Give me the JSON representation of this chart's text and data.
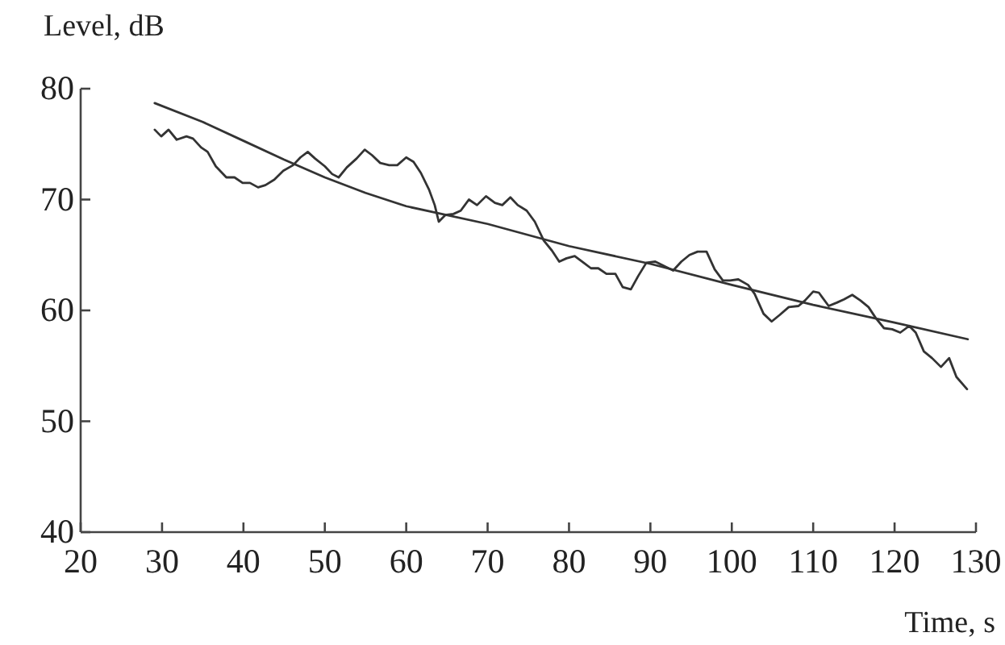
{
  "chart_data": {
    "type": "line",
    "xlabel": "Time, s",
    "ylabel": "Level, dB",
    "xlim": [
      20,
      130
    ],
    "xticks": [
      20,
      30,
      40,
      50,
      60,
      70,
      80,
      90,
      100,
      110,
      120,
      130
    ],
    "ylim": [
      40,
      80
    ],
    "yticks": [
      40,
      50,
      60,
      70,
      80
    ],
    "grid": false,
    "marker": "none",
    "line_style": "solid",
    "series": [
      {
        "color": "#333333",
        "x": [
          29.1,
          29.9,
          30.8,
          31.8,
          33.0,
          33.8,
          34.8,
          35.6,
          36.6,
          37.9,
          38.9,
          39.9,
          40.8,
          41.8,
          42.7,
          43.8,
          44.9,
          46.1,
          47.0,
          47.9,
          48.8,
          50.0,
          50.9,
          51.7,
          52.7,
          53.9,
          54.9,
          55.8,
          56.8,
          57.9,
          58.9,
          60.0,
          60.9,
          61.8,
          62.8,
          63.5,
          64.0,
          64.8,
          65.8,
          66.7,
          67.7,
          68.7,
          69.8,
          70.9,
          71.8,
          72.8,
          73.7,
          74.8,
          75.8,
          76.9,
          77.9,
          78.8,
          79.7,
          80.7,
          81.8,
          82.7,
          83.6,
          84.6,
          85.7,
          86.6,
          87.6,
          88.5,
          89.5,
          90.6,
          91.7,
          92.8,
          93.8,
          94.8,
          95.8,
          96.9,
          97.9,
          98.9,
          99.8,
          100.8,
          102.0,
          102.8,
          103.9,
          104.9,
          105.9,
          107.0,
          108.2,
          109.0,
          110.0,
          110.7,
          111.9,
          112.9,
          113.8,
          114.8,
          115.8,
          116.8,
          117.7,
          118.7,
          119.7,
          120.7,
          121.8,
          122.6,
          123.6,
          124.6,
          125.7,
          126.7,
          127.6,
          128.9
        ],
        "values": [
          76.3,
          75.7,
          76.3,
          75.4,
          75.7,
          75.5,
          74.7,
          74.3,
          73.0,
          72.0,
          72.0,
          71.5,
          71.5,
          71.1,
          71.3,
          71.8,
          72.6,
          73.1,
          73.8,
          74.3,
          73.7,
          73.0,
          72.3,
          72.0,
          72.9,
          73.7,
          74.5,
          74.0,
          73.3,
          73.1,
          73.1,
          73.8,
          73.4,
          72.4,
          70.9,
          69.5,
          68.0,
          68.6,
          68.7,
          69.0,
          70.0,
          69.5,
          70.3,
          69.7,
          69.5,
          70.2,
          69.5,
          69.0,
          68.0,
          66.3,
          65.4,
          64.4,
          64.7,
          64.9,
          64.3,
          63.8,
          63.8,
          63.3,
          63.3,
          62.1,
          61.9,
          63.1,
          64.3,
          64.4,
          64.0,
          63.6,
          64.4,
          65.0,
          65.3,
          65.3,
          63.7,
          62.7,
          62.7,
          62.8,
          62.3,
          61.5,
          59.7,
          59.0,
          59.6,
          60.3,
          60.4,
          60.9,
          61.7,
          61.6,
          60.4,
          60.7,
          61.0,
          61.4,
          60.9,
          60.3,
          59.3,
          58.4,
          58.3,
          58.0,
          58.6,
          58.0,
          56.3,
          55.7,
          54.9,
          55.7,
          54.0,
          52.9
        ]
      },
      {
        "color": "#333333",
        "x": [
          29.1,
          35,
          40,
          45,
          50,
          55,
          60,
          70,
          80,
          90,
          100,
          110,
          120,
          129
        ],
        "values": [
          78.7,
          77.0,
          75.3,
          73.6,
          72.0,
          70.6,
          69.4,
          67.8,
          65.8,
          64.2,
          62.3,
          60.5,
          58.9,
          57.4
        ]
      }
    ]
  }
}
